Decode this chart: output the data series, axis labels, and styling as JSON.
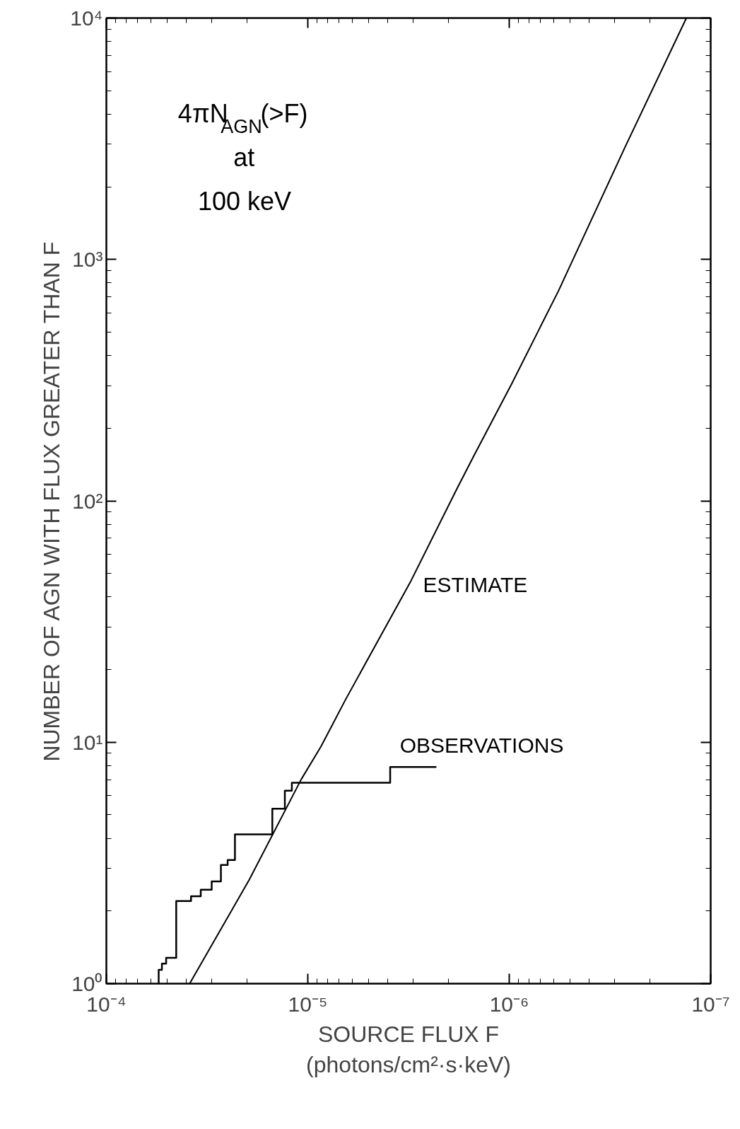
{
  "chart_data": {
    "type": "line",
    "log": "xy",
    "xlabel": "SOURCE FLUX F\n(photons/cm²·s·keV)",
    "ylabel": "NUMBER OF AGN WITH FLUX GREATER THAN F",
    "annotations": [
      "4πN$_{AGN}$(>F)\nat\n100 keV"
    ],
    "xlim": [
      0.0001,
      1e-07
    ],
    "ylim": [
      1,
      10000
    ],
    "xticks": [
      {
        "value": 0.0001,
        "label": "10⁻⁴"
      },
      {
        "value": 1e-05,
        "label": "10⁻⁵"
      },
      {
        "value": 1e-06,
        "label": "10⁻⁶"
      },
      {
        "value": 1e-07,
        "label": "10⁻⁷"
      }
    ],
    "yticks": [
      {
        "value": 1,
        "label": "10⁰"
      },
      {
        "value": 10,
        "label": "10¹"
      },
      {
        "value": 100,
        "label": "10²"
      },
      {
        "value": 1000,
        "label": "10³"
      },
      {
        "value": 10000,
        "label": "10⁴"
      }
    ],
    "grid": false,
    "series": [
      {
        "name": "ESTIMATE",
        "color": "#000000",
        "x": [
          3.86e-05,
          1.95e-05,
          1.08e-05,
          8.6e-06,
          6.5e-06,
          3.1e-06,
          1.83e-06,
          1.49e-06,
          9.75e-07,
          5.7e-07,
          2.65e-07,
          1.32e-07
        ],
        "values": [
          1,
          2.7,
          7.0,
          9.6,
          15,
          46,
          111,
          155,
          304,
          740,
          2940,
          10000
        ]
      },
      {
        "name": "OBSERVATIONS",
        "type": "step",
        "color": "#000000",
        "x": [
          5.5e-05,
          5.3e-05,
          5.05e-05,
          4.5e-05,
          3.8e-05,
          3.4e-05,
          3e-05,
          2.7e-05,
          2.5e-05,
          2.3e-05,
          1.5e-05,
          1.3e-05,
          1.2e-05,
          3.9e-06,
          2.3e-06
        ],
        "values": [
          1,
          1.14,
          1.21,
          1.28,
          2.2,
          2.3,
          2.45,
          2.65,
          3.1,
          3.25,
          4.15,
          5.3,
          6.3,
          6.8,
          7.9
        ]
      }
    ]
  }
}
